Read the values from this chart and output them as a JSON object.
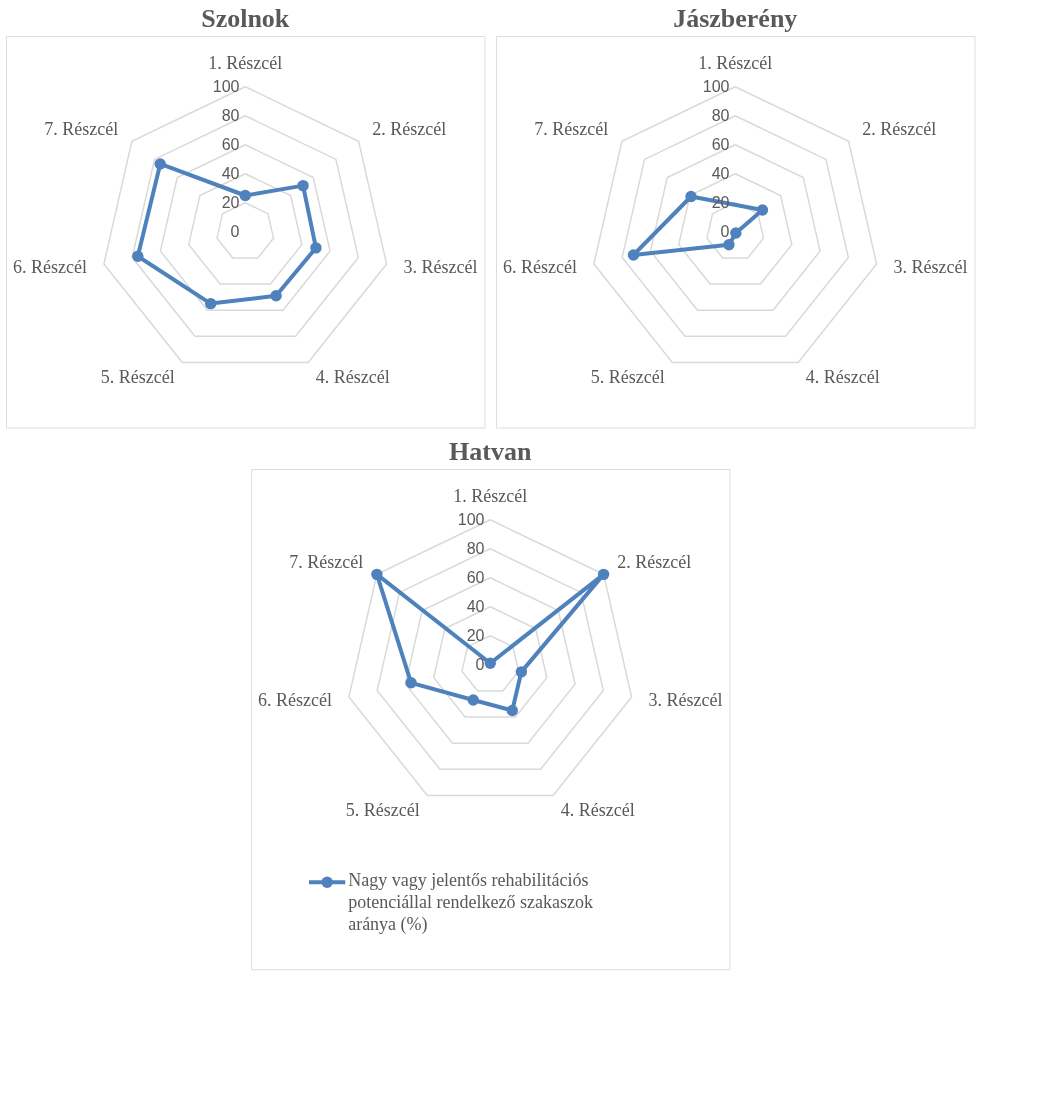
{
  "chart_data": [
    {
      "type": "radar",
      "title": "Szolnok",
      "categories": [
        "1. Részcél",
        "2. Részcél",
        "3. Részcél",
        "4. Részcél",
        "5. Részcél",
        "6. Részcél",
        "7. Részcél"
      ],
      "ylim": [
        0,
        100
      ],
      "yticks": [
        0,
        20,
        40,
        60,
        80,
        100
      ],
      "grid": true,
      "marker": "circle",
      "series": [
        {
          "color": "#4f81bd",
          "values": [
            25,
            51,
            50,
            49,
            55,
            76,
            75
          ]
        }
      ]
    },
    {
      "type": "radar",
      "title": "Jászberény",
      "categories": [
        "1. Részcél",
        "2. Részcél",
        "3. Részcél",
        "4. Részcél",
        "5. Részcél",
        "6. Részcél",
        "7. Részcél"
      ],
      "ylim": [
        0,
        100
      ],
      "yticks": [
        0,
        20,
        40,
        60,
        80,
        100
      ],
      "grid": true,
      "marker": "circle",
      "series": [
        {
          "color": "#4f81bd",
          "values": [
            null,
            24,
            null,
            1,
            10,
            72,
            39
          ]
        }
      ]
    },
    {
      "type": "radar",
      "title": "Hatvan",
      "categories": [
        "1. Részcél",
        "2. Részcél",
        "3. Részcél",
        "4. Részcél",
        "5. Részcél",
        "6. Részcél",
        "7. Részcél"
      ],
      "ylim": [
        0,
        100
      ],
      "yticks": [
        0,
        20,
        40,
        60,
        80,
        100
      ],
      "grid": true,
      "marker": "circle",
      "legend": "bottom",
      "series": [
        {
          "name": "Nagy vagy jelentős rehabilitációs potenciállal rendelkező szakaszok aránya (%)",
          "color": "#4f81bd",
          "values": [
            1,
            100,
            22,
            35,
            27,
            56,
            100
          ]
        }
      ]
    }
  ]
}
